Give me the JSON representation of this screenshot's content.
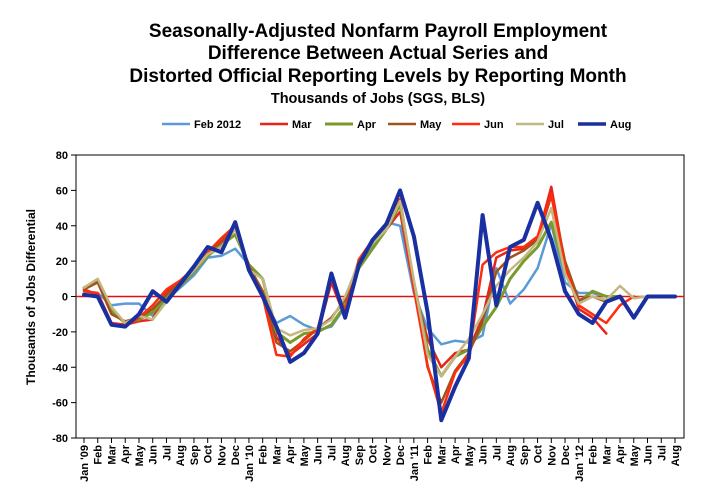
{
  "chart_data": {
    "type": "line",
    "title_lines": [
      "Seasonally-Adjusted Nonfarm Payroll Employment",
      "Difference Between Actual Series and",
      "Distorted Official Reporting Levels by Reporting Month"
    ],
    "subtitle": "Thousands of Jobs (SGS, BLS)",
    "ylabel": "Thousands of Jobs Differential",
    "xlabel": "",
    "ylim": [
      -80,
      80
    ],
    "yticks": [
      "80",
      "60",
      "40",
      "20",
      "0",
      "-20",
      "-40",
      "-60",
      "-80"
    ],
    "ytick_values": [
      80,
      60,
      40,
      20,
      0,
      -20,
      -40,
      -60,
      -80
    ],
    "zero_line_color": "#e01010",
    "grid": false,
    "legend_position": "top",
    "categories": [
      "Jan '09",
      "Feb",
      "Mar",
      "Apr",
      "May",
      "Jun",
      "Jul",
      "Aug",
      "Sep",
      "Oct",
      "Nov",
      "Dec",
      "Jan '10",
      "Feb",
      "Mar",
      "Apr",
      "May",
      "Jun",
      "Jul",
      "Aug",
      "Sep",
      "Oct",
      "Nov",
      "Dec",
      "Jan '11",
      "Feb",
      "Mar",
      "Apr",
      "May",
      "Jun",
      "Jul",
      "Aug",
      "Sep",
      "Oct",
      "Nov",
      "Dec",
      "Jan '12",
      "Feb",
      "Mar",
      "Apr",
      "May",
      "Jun",
      "Jul",
      "Aug"
    ],
    "series": [
      {
        "name": "Feb 2012",
        "color": "#5b9bd5",
        "width": 2.5,
        "values": [
          3,
          2,
          -5,
          -4,
          -4,
          -11,
          -2,
          5,
          12,
          22,
          23,
          27,
          18,
          0,
          -15,
          -11,
          -16,
          -19,
          -17,
          -6,
          18,
          28,
          42,
          40,
          2,
          -18,
          -27,
          -25,
          -26,
          -22,
          16,
          -4,
          4,
          16,
          41,
          8,
          2,
          2,
          0,
          null,
          null,
          null,
          null,
          null
        ]
      },
      {
        "name": "Mar",
        "color": "#e8231b",
        "width": 2.5,
        "values": [
          4,
          1,
          -15,
          -16,
          -14,
          -13,
          3,
          8,
          17,
          25,
          30,
          40,
          17,
          3,
          -23,
          -33,
          -27,
          -21,
          8,
          -12,
          21,
          30,
          38,
          48,
          5,
          -24,
          -40,
          -32,
          -30,
          -12,
          22,
          26,
          27,
          33,
          62,
          18,
          -7,
          -12,
          -21,
          null,
          null,
          null,
          null,
          null
        ]
      },
      {
        "name": "Apr",
        "color": "#7a9a2c",
        "width": 3,
        "values": [
          5,
          9,
          -8,
          -15,
          -13,
          -9,
          -1,
          6,
          14,
          23,
          29,
          35,
          18,
          10,
          -20,
          -26,
          -21,
          -20,
          -16,
          -5,
          16,
          27,
          38,
          52,
          8,
          -30,
          -45,
          -34,
          -30,
          -17,
          -6,
          10,
          20,
          28,
          42,
          14,
          -3,
          3,
          0,
          0,
          null,
          null,
          null,
          null
        ]
      },
      {
        "name": "May",
        "color": "#a0521d",
        "width": 2.5,
        "values": [
          4,
          8,
          -10,
          -14,
          -12,
          -7,
          1,
          8,
          16,
          24,
          32,
          38,
          17,
          3,
          -26,
          -31,
          -25,
          -18,
          -12,
          -2,
          20,
          30,
          40,
          55,
          7,
          -40,
          -60,
          -42,
          -32,
          -14,
          14,
          22,
          26,
          32,
          57,
          20,
          -2,
          0,
          -3,
          null,
          null,
          null,
          null,
          null
        ]
      },
      {
        "name": "Jun",
        "color": "#ff2d0d",
        "width": 2.5,
        "values": [
          3,
          2,
          -15,
          -17,
          -12,
          -5,
          4,
          9,
          16,
          25,
          33,
          40,
          17,
          0,
          -33,
          -34,
          -24,
          -18,
          10,
          -8,
          21,
          32,
          41,
          55,
          4,
          -39,
          -66,
          -43,
          -33,
          18,
          25,
          28,
          28,
          34,
          58,
          17,
          -5,
          -10,
          -15,
          -5,
          0,
          null,
          null,
          null
        ]
      },
      {
        "name": "Jul",
        "color": "#c4b882",
        "width": 2.5,
        "values": [
          5,
          10,
          -6,
          -15,
          -11,
          -13,
          -3,
          7,
          15,
          24,
          28,
          38,
          15,
          10,
          -18,
          -22,
          -19,
          -18,
          -13,
          0,
          19,
          30,
          38,
          54,
          9,
          -33,
          -45,
          -34,
          -24,
          -10,
          6,
          15,
          22,
          31,
          50,
          13,
          -4,
          0,
          -2,
          6,
          -1,
          0,
          null,
          null
        ]
      },
      {
        "name": "Aug",
        "color": "#1a2fa0",
        "width": 4,
        "values": [
          1,
          0,
          -16,
          -17,
          -10,
          3,
          -3,
          7,
          17,
          28,
          25,
          42,
          15,
          0,
          -17,
          -37,
          -32,
          -21,
          13,
          -12,
          18,
          32,
          41,
          60,
          34,
          -9,
          -70,
          -51,
          -35,
          46,
          -5,
          28,
          32,
          53,
          32,
          3,
          -10,
          -15,
          -3,
          0,
          -12,
          0,
          0,
          0
        ]
      }
    ]
  }
}
